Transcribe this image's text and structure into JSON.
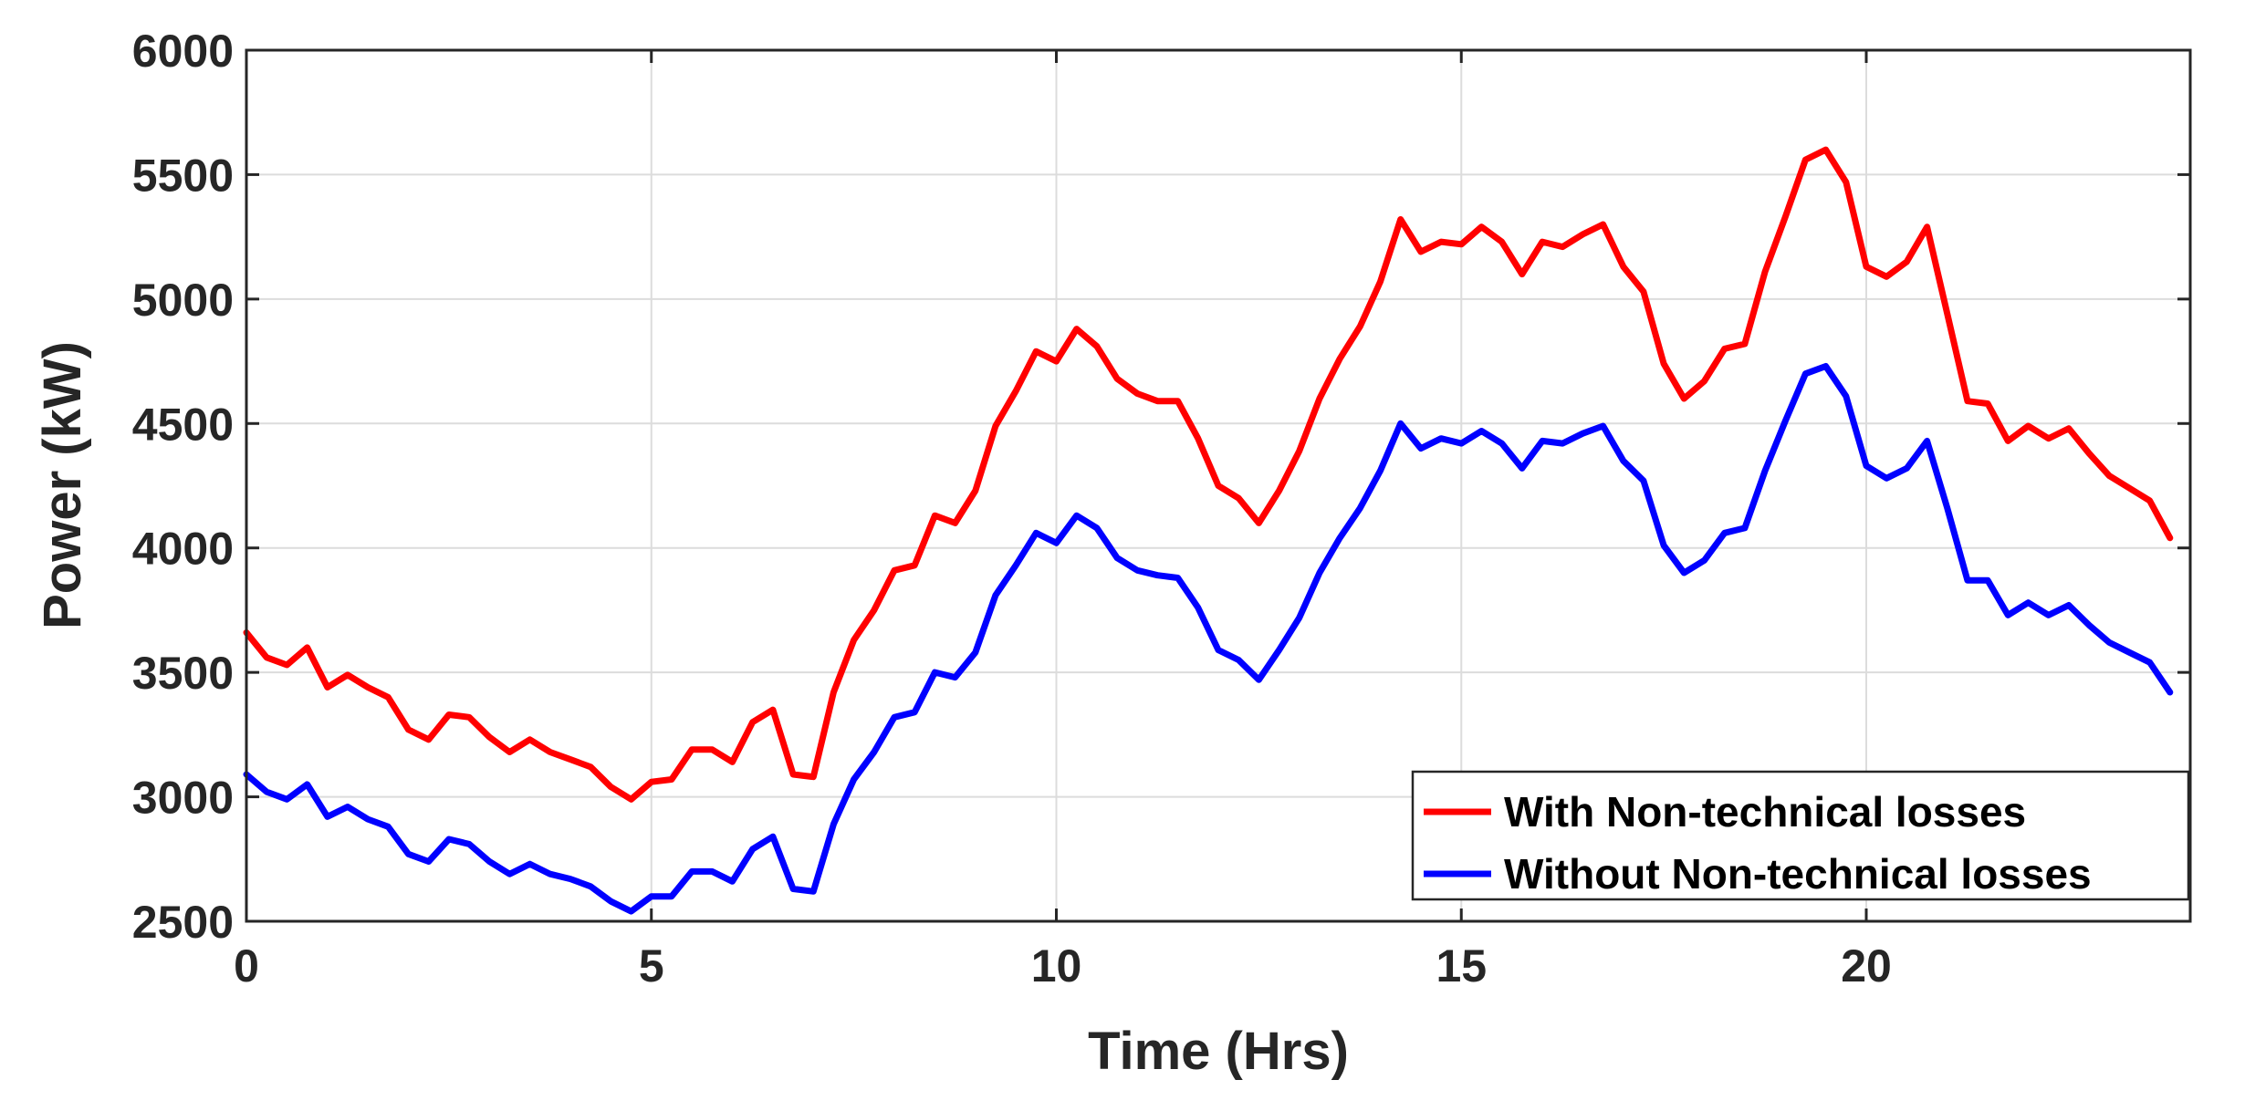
{
  "chart_data": {
    "type": "line",
    "title": "",
    "xlabel": "Time (Hrs)",
    "ylabel": "Power (kW)",
    "xlim": [
      0,
      24
    ],
    "ylim": [
      2500,
      6000
    ],
    "xticks": [
      0,
      5,
      10,
      15,
      20
    ],
    "yticks": [
      2500,
      3000,
      3500,
      4000,
      4500,
      5000,
      5500,
      6000
    ],
    "grid": true,
    "legend_position": "bottom-right",
    "x": [
      0,
      0.25,
      0.5,
      0.75,
      1,
      1.25,
      1.5,
      1.75,
      2,
      2.25,
      2.5,
      2.75,
      3,
      3.25,
      3.5,
      3.75,
      4,
      4.25,
      4.5,
      4.75,
      5,
      5.25,
      5.5,
      5.75,
      6,
      6.25,
      6.5,
      6.75,
      7,
      7.25,
      7.5,
      7.75,
      8,
      8.25,
      8.5,
      8.75,
      9,
      9.25,
      9.5,
      9.75,
      10,
      10.25,
      10.5,
      10.75,
      11,
      11.25,
      11.5,
      11.75,
      12,
      12.25,
      12.5,
      12.75,
      13,
      13.25,
      13.5,
      13.75,
      14,
      14.25,
      14.5,
      14.75,
      15,
      15.25,
      15.5,
      15.75,
      16,
      16.25,
      16.5,
      16.75,
      17,
      17.25,
      17.5,
      17.75,
      18,
      18.25,
      18.5,
      18.75,
      19,
      19.25,
      19.5,
      19.75,
      20,
      20.25,
      20.5,
      20.75,
      21,
      21.25,
      21.5,
      21.75,
      22,
      22.25,
      22.5,
      22.75,
      23,
      23.25,
      23.5,
      23.75
    ],
    "series": [
      {
        "name": "With Non-technical losses",
        "color": "#ff0000",
        "values": [
          3660,
          3560,
          3530,
          3600,
          3440,
          3490,
          3440,
          3400,
          3270,
          3230,
          3330,
          3320,
          3240,
          3180,
          3230,
          3180,
          3150,
          3120,
          3040,
          2990,
          3060,
          3070,
          3190,
          3190,
          3140,
          3300,
          3350,
          3090,
          3080,
          3420,
          3630,
          3750,
          3910,
          3930,
          4130,
          4100,
          4230,
          4490,
          4630,
          4790,
          4750,
          4880,
          4810,
          4680,
          4620,
          4590,
          4590,
          4440,
          4250,
          4200,
          4100,
          4230,
          4390,
          4600,
          4760,
          4890,
          5070,
          5320,
          5190,
          5230,
          5220,
          5290,
          5230,
          5100,
          5230,
          5210,
          5260,
          5300,
          5130,
          5030,
          4740,
          4600,
          4670,
          4800,
          4820,
          5110,
          5330,
          5560,
          5600,
          5470,
          5130,
          5090,
          5150,
          5290,
          4940,
          4590,
          4580,
          4430,
          4490,
          4440,
          4480,
          4380,
          4290,
          4240,
          4190,
          4040
        ]
      },
      {
        "name": "Without Non-technical losses",
        "color": "#0000ff",
        "values": [
          3090,
          3020,
          2990,
          3050,
          2920,
          2960,
          2910,
          2880,
          2770,
          2740,
          2830,
          2810,
          2740,
          2690,
          2730,
          2690,
          2670,
          2640,
          2580,
          2540,
          2600,
          2600,
          2700,
          2700,
          2660,
          2790,
          2840,
          2630,
          2620,
          2890,
          3070,
          3180,
          3320,
          3340,
          3500,
          3480,
          3580,
          3810,
          3930,
          4060,
          4020,
          4130,
          4080,
          3960,
          3910,
          3890,
          3880,
          3760,
          3590,
          3550,
          3470,
          3590,
          3720,
          3900,
          4040,
          4160,
          4310,
          4500,
          4400,
          4440,
          4420,
          4470,
          4420,
          4320,
          4430,
          4420,
          4460,
          4490,
          4350,
          4270,
          4010,
          3900,
          3950,
          4060,
          4080,
          4310,
          4510,
          4700,
          4730,
          4610,
          4330,
          4280,
          4320,
          4430,
          4160,
          3870,
          3870,
          3730,
          3780,
          3730,
          3770,
          3690,
          3620,
          3580,
          3540,
          3420
        ]
      }
    ]
  }
}
